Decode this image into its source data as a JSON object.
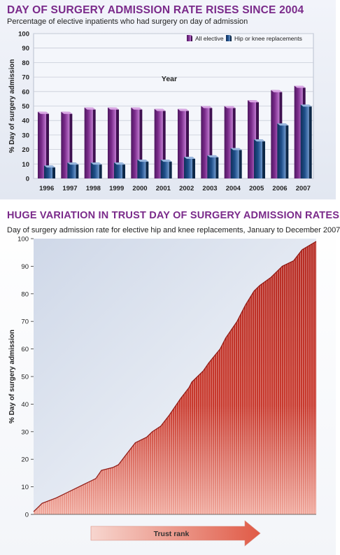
{
  "chart_data": [
    {
      "type": "bar",
      "title": "DAY OF SURGERY ADMISSION RATE RISES SINCE 2004",
      "subtitle": "Percentage of elective inpatients who had surgery on day of admission",
      "xlabel": "Year",
      "ylabel": "% Day of surgery admission",
      "ylim": [
        0,
        100
      ],
      "yticks": [
        0,
        10,
        20,
        30,
        40,
        50,
        60,
        70,
        80,
        90,
        100
      ],
      "grid": true,
      "legend_position": "top-right",
      "categories": [
        "1996",
        "1997",
        "1998",
        "1999",
        "2000",
        "2001",
        "2002",
        "2003",
        "2004",
        "2005",
        "2006",
        "2007"
      ],
      "series": [
        {
          "name": "All elective",
          "color": "#7b2c8c",
          "values": [
            46,
            46,
            49,
            49,
            49,
            48,
            48,
            50,
            50,
            54,
            61,
            64
          ]
        },
        {
          "name": "Hip or knee replacements",
          "color": "#1f4f8a",
          "values": [
            9,
            11,
            11,
            11,
            13,
            13,
            15,
            16,
            21,
            27,
            38,
            51
          ]
        }
      ]
    },
    {
      "type": "area",
      "title": "HUGE VARIATION IN TRUST DAY OF SURGERY ADMISSION RATES",
      "subtitle": "Day of surgery admission rate for elective hip and knee replacements, January to December 2007",
      "xlabel": "Trust rank",
      "ylabel": "% Day of surgery admission",
      "ylim": [
        0,
        100
      ],
      "yticks": [
        0,
        10,
        20,
        30,
        40,
        50,
        60,
        70,
        80,
        90,
        100
      ],
      "color": "#c8382c",
      "x": [
        0,
        2,
        3,
        8,
        12,
        18,
        22,
        24,
        28,
        30,
        33,
        36,
        40,
        42,
        45,
        48,
        52,
        55,
        56,
        60,
        62,
        66,
        68,
        72,
        75,
        78,
        80,
        84,
        88,
        92,
        95,
        100
      ],
      "values": [
        1,
        3,
        4,
        6,
        8,
        11,
        13,
        16,
        17,
        18,
        22,
        26,
        28,
        30,
        32,
        36,
        42,
        46,
        48,
        52,
        55,
        60,
        64,
        70,
        76,
        81,
        83,
        86,
        90,
        92,
        96,
        99
      ]
    }
  ]
}
